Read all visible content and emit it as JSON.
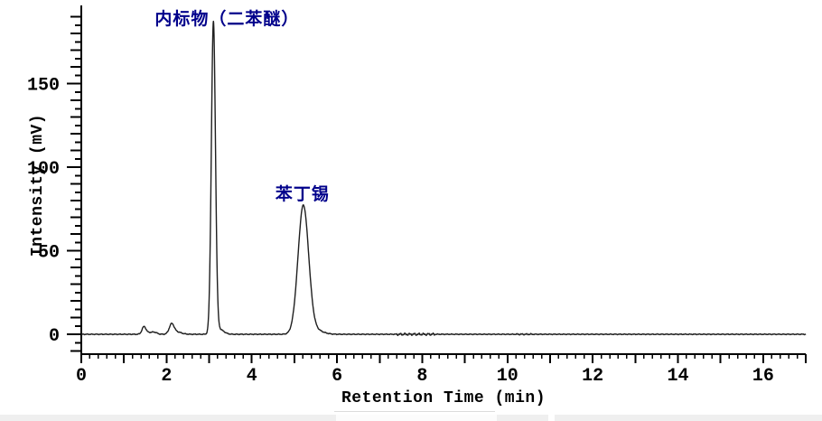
{
  "chart_data": {
    "type": "line",
    "title": "",
    "xlabel": "Retention Time (min)",
    "ylabel": "Intensity (mV)",
    "xlim": [
      0,
      17
    ],
    "ylim": [
      -12,
      194
    ],
    "x_labeled_ticks": [
      0,
      2,
      4,
      6,
      8,
      10,
      12,
      14,
      16
    ],
    "x_medium_tick_interval": 1,
    "x_minor_tick_interval": 0.2,
    "y_labeled_ticks": [
      0,
      50,
      100,
      150
    ],
    "y_medium_tick_interval": 10,
    "y_minor_tick_interval": 5,
    "grid": false,
    "legend": false,
    "axis_color": "#000000",
    "line_color": "#1f1f1f",
    "annotation_color": "#00008B",
    "peaks": [
      {
        "name": "baseline-bump-1",
        "center_min": 1.47,
        "height_mv": 4.2,
        "sigma_min": 0.045
      },
      {
        "name": "baseline-bump-1-tail",
        "center_min": 1.58,
        "height_mv": 1.0,
        "sigma_min": 0.09
      },
      {
        "name": "baseline-bump-2",
        "center_min": 1.72,
        "height_mv": 1.0,
        "sigma_min": 0.06
      },
      {
        "name": "baseline-bump-3",
        "center_min": 2.12,
        "height_mv": 5.6,
        "sigma_min": 0.055
      },
      {
        "name": "baseline-bump-3-tail",
        "center_min": 2.23,
        "height_mv": 1.5,
        "sigma_min": 0.11
      },
      {
        "name": "internal-standard-peak",
        "center_min": 3.1,
        "height_mv": 186,
        "sigma_min": 0.048
      },
      {
        "name": "internal-standard-peak-tail",
        "center_min": 3.24,
        "height_mv": 3.0,
        "sigma_min": 0.1
      },
      {
        "name": "fenbutatin-peak",
        "center_min": 5.21,
        "height_mv": 77,
        "sigma_min": 0.125
      },
      {
        "name": "fenbutatin-peak-tail",
        "center_min": 5.52,
        "height_mv": 2.2,
        "sigma_min": 0.16
      }
    ],
    "noise": {
      "base_amplitude_mv": 0.3,
      "segments": [
        {
          "from_min": 7.4,
          "to_min": 8.3,
          "amplitude_mv": 0.8
        },
        {
          "from_min": 10.2,
          "to_min": 10.6,
          "amplitude_mv": 0.5
        }
      ]
    },
    "annotations": [
      {
        "id": "internal-standard-label",
        "text": "内标物（二苯醚）",
        "x_min": 3.42,
        "y_mv": 197
      },
      {
        "id": "fenbutatin-label",
        "text": "苯丁锡",
        "x_min": 5.19,
        "y_mv": 92
      }
    ]
  }
}
